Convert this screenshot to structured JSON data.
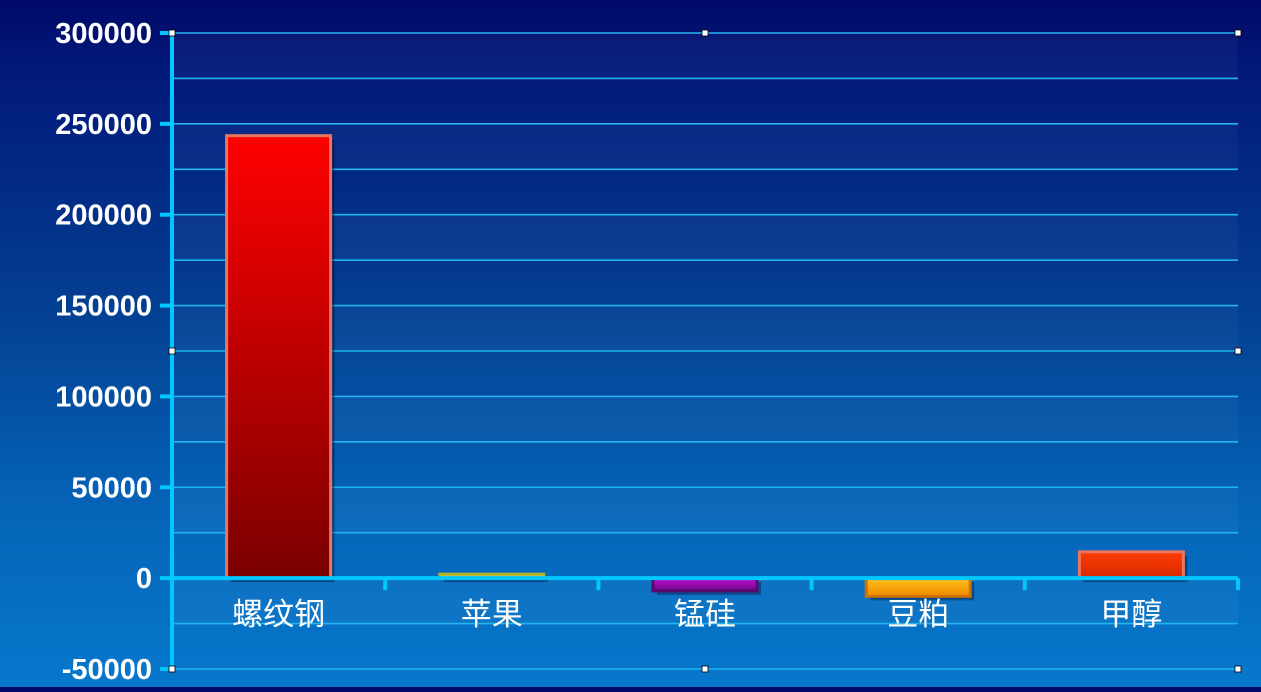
{
  "chart_data": {
    "type": "bar",
    "title": "",
    "xlabel": "",
    "ylabel": "",
    "categories": [
      "螺纹钢",
      "苹果",
      "锰硅",
      "豆粕",
      "甲醇"
    ],
    "values": [
      243500,
      2200,
      -7000,
      -10000,
      14500
    ],
    "ylim": [
      -50000,
      300000
    ],
    "yticks": [
      -50000,
      0,
      50000,
      100000,
      150000,
      200000,
      250000,
      300000
    ],
    "ytick_labels": [
      "-50000",
      "0",
      "50000",
      "100000",
      "150000",
      "200000",
      "250000",
      "300000"
    ],
    "grid": true,
    "legend": "none",
    "colors": {
      "bars": [
        {
          "top": "#ff0000",
          "bottom": "#7a0000",
          "border": "#e8765f"
        },
        {
          "top": "#f2ee4a",
          "bottom": "#bdb92a",
          "border": "#b0b030"
        },
        {
          "top": "#c010d0",
          "bottom": "#70088a",
          "border": "#5a086e"
        },
        {
          "top": "#ffc21a",
          "bottom": "#f08a00",
          "border": "#d07000"
        },
        {
          "top": "#ff3c00",
          "bottom": "#d42a00",
          "border": "#e8765f"
        }
      ],
      "axis": "#00c8ff",
      "grid": "#21b4ee",
      "text": "#ffffff"
    }
  }
}
